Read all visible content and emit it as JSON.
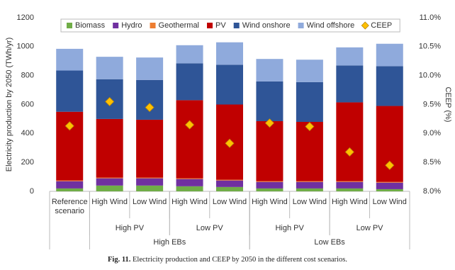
{
  "chart_data": {
    "type": "bar",
    "stacked": true,
    "ylabel": "Electricity production by 2050 (TWh/yr)",
    "y2label": "CEEP (%)",
    "categories": [
      "Reference scenario",
      "High Wind",
      "Low Wind",
      "High Wind",
      "Low Wind",
      "High Wind",
      "Low Wind",
      "High Wind",
      "Low Wind"
    ],
    "category_groups": [
      {
        "label": "High PV",
        "start": 1,
        "end": 2
      },
      {
        "label": "Low PV",
        "start": 3,
        "end": 4
      },
      {
        "label": "High PV",
        "start": 5,
        "end": 6
      },
      {
        "label": "Low PV",
        "start": 7,
        "end": 8
      }
    ],
    "category_supergroups": [
      {
        "label": "High EBs",
        "start": 1,
        "end": 4
      },
      {
        "label": "Low EBs",
        "start": 5,
        "end": 8
      }
    ],
    "series": [
      {
        "name": "Biomass",
        "color": "#70ad47",
        "values": [
          20,
          40,
          40,
          35,
          30,
          20,
          20,
          20,
          15
        ]
      },
      {
        "name": "Hydro",
        "color": "#7030a0",
        "values": [
          50,
          50,
          50,
          50,
          45,
          45,
          45,
          45,
          45
        ]
      },
      {
        "name": "Geothermal",
        "color": "#ed7d31",
        "values": [
          5,
          5,
          5,
          5,
          5,
          5,
          5,
          5,
          5
        ]
      },
      {
        "name": "PV",
        "color": "#c00000",
        "values": [
          475,
          405,
          400,
          540,
          520,
          415,
          410,
          545,
          525
        ]
      },
      {
        "name": "Wind onshore",
        "color": "#2f5597",
        "values": [
          285,
          275,
          275,
          255,
          275,
          275,
          275,
          255,
          275
        ]
      },
      {
        "name": "Wind offshore",
        "color": "#8faadc",
        "values": [
          150,
          155,
          155,
          125,
          155,
          155,
          155,
          125,
          155
        ]
      },
      {
        "name": "CEEP",
        "color": "#ffc000",
        "axis": "y2",
        "marker": "diamond",
        "values": [
          9.13,
          9.55,
          9.45,
          9.15,
          8.83,
          9.18,
          9.12,
          8.68,
          8.45
        ]
      }
    ],
    "ylim": [
      0,
      1200
    ],
    "yticks": [
      0,
      200,
      400,
      600,
      800,
      1000,
      1200
    ],
    "y2lim": [
      8.0,
      11.0
    ],
    "y2ticks": [
      {
        "value": 8.0,
        "label": "8.0%"
      },
      {
        "value": 8.5,
        "label": "8.5%"
      },
      {
        "value": 9.0,
        "label": "9.0%"
      },
      {
        "value": 9.5,
        "label": "9.5%"
      },
      {
        "value": 10.0,
        "label": "10.0%"
      },
      {
        "value": 10.5,
        "label": "10.5%"
      },
      {
        "value": 11.0,
        "label": "11.0%"
      }
    ],
    "grid": false,
    "legend": "top",
    "caption_label": "Fig. 11.",
    "caption": "Electricity production and CEEP by 2050 in the different cost scenarios."
  }
}
